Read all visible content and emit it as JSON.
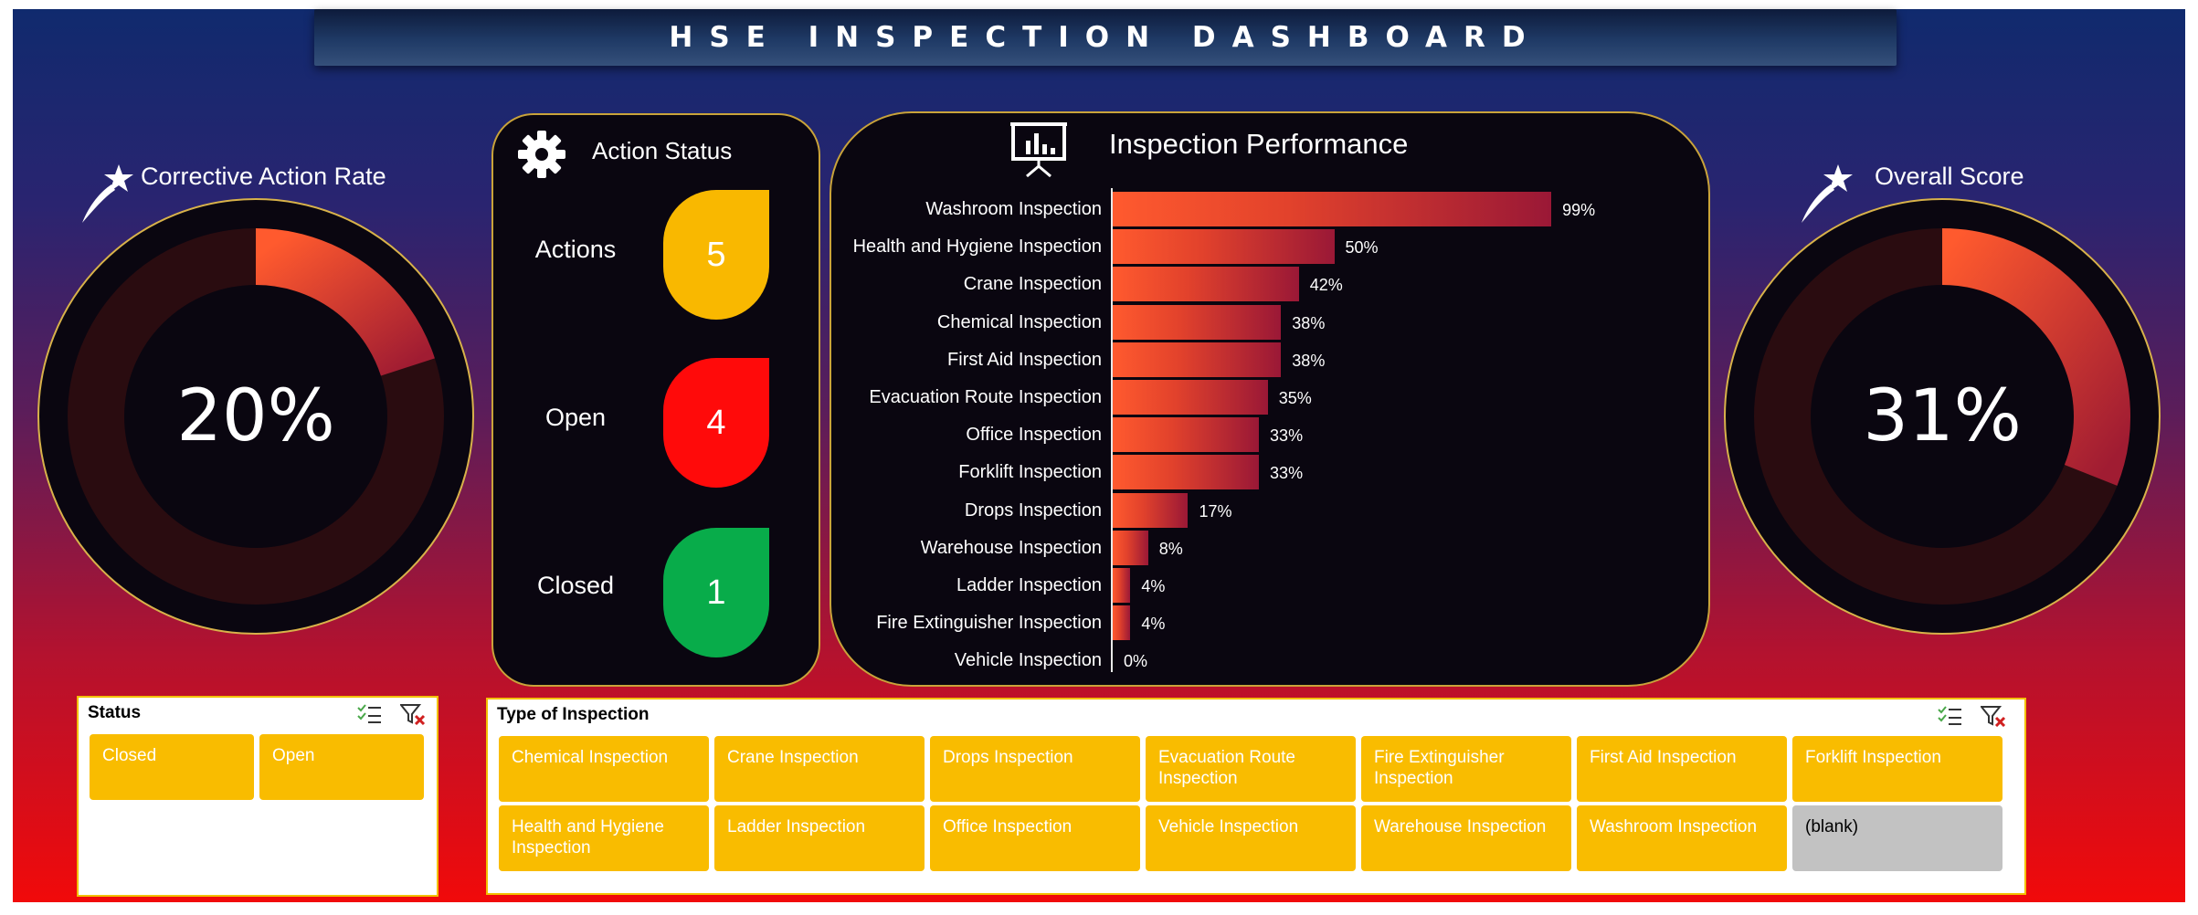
{
  "header": {
    "title": "HSE INSPECTION DASHBOARD"
  },
  "gauges": [
    {
      "title": "Corrective Action Rate",
      "value_label": "20%",
      "value": 0.2,
      "icon": "shooting-star-icon"
    },
    {
      "title": "Overall Score",
      "value_label": "31%",
      "value": 0.31,
      "icon": "shooting-star-icon"
    }
  ],
  "action_status": {
    "title": "Action Status",
    "icon": "gear-icon",
    "rows": [
      {
        "label": "Actions",
        "value": "5",
        "color": "#f9b800"
      },
      {
        "label": "Open",
        "value": "4",
        "color": "#ff0a0a"
      },
      {
        "label": "Closed",
        "value": "1",
        "color": "#08ac4a"
      }
    ]
  },
  "performance": {
    "title": "Inspection Performance",
    "icon": "presentation-chart-icon"
  },
  "chart_data": {
    "type": "bar",
    "orientation": "horizontal",
    "categories": [
      "Washroom Inspection",
      "Health and Hygiene Inspection",
      "Crane Inspection",
      "Chemical Inspection",
      "First Aid Inspection",
      "Evacuation Route Inspection",
      "Office Inspection",
      "Forklift Inspection",
      "Drops Inspection",
      "Warehouse Inspection",
      "Ladder Inspection",
      "Fire Extinguisher Inspection",
      "Vehicle Inspection"
    ],
    "values": [
      99,
      50,
      42,
      38,
      38,
      35,
      33,
      33,
      17,
      8,
      4,
      4,
      0
    ],
    "value_labels": [
      "99%",
      "50%",
      "42%",
      "38%",
      "38%",
      "35%",
      "33%",
      "33%",
      "17%",
      "8%",
      "4%",
      "4%",
      "0%"
    ],
    "xlim": [
      0,
      100
    ]
  },
  "status_slicer": {
    "title": "Status",
    "items": [
      "Closed",
      "Open"
    ]
  },
  "type_slicer": {
    "title": "Type of Inspection",
    "items": [
      "Chemical Inspection",
      "Crane Inspection",
      "Drops Inspection",
      "Evacuation Route Inspection",
      "Fire Extinguisher Inspection",
      "First Aid Inspection",
      "Forklift Inspection",
      "Health and Hygiene Inspection",
      "Ladder Inspection",
      "Office Inspection",
      "Vehicle Inspection",
      "Warehouse Inspection",
      "Washroom Inspection",
      "(blank)"
    ]
  }
}
